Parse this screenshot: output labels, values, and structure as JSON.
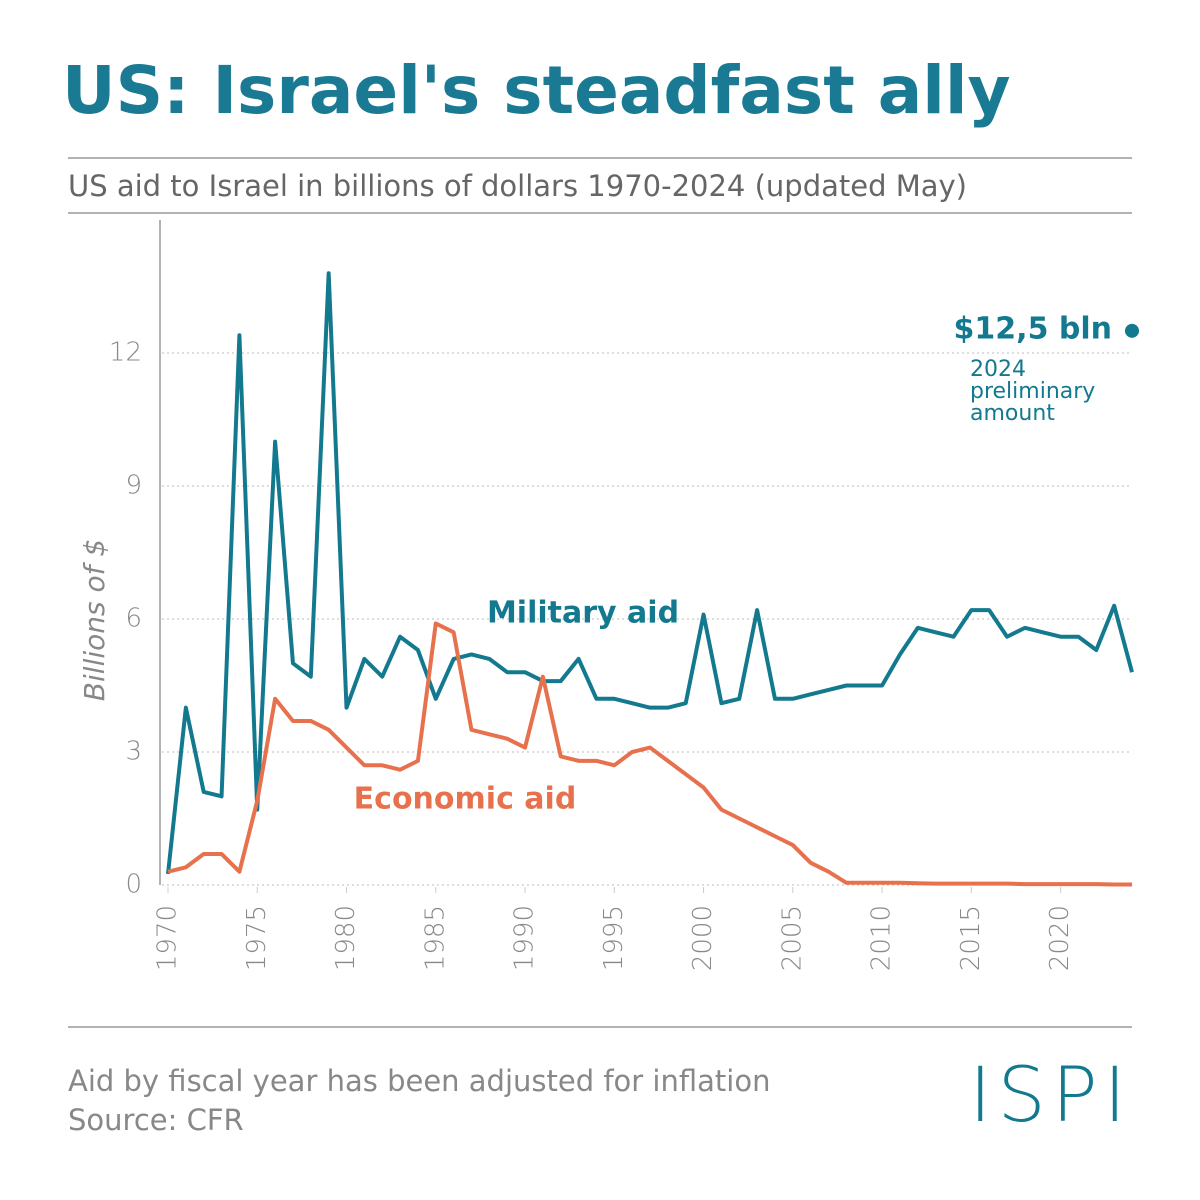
{
  "chart_data": {
    "type": "line",
    "title": "US: Israel's steadfast ally",
    "subtitle": "US aid to Israel in billions of dollars 1970-2024 (updated May)",
    "y_label": "Billions of $",
    "x": [
      1970,
      1971,
      1972,
      1973,
      1974,
      1975,
      1976,
      1977,
      1978,
      1979,
      1980,
      1981,
      1982,
      1983,
      1984,
      1985,
      1986,
      1987,
      1988,
      1989,
      1990,
      1991,
      1992,
      1993,
      1994,
      1995,
      1996,
      1997,
      1998,
      1999,
      2000,
      2001,
      2002,
      2003,
      2004,
      2005,
      2006,
      2007,
      2008,
      2009,
      2010,
      2011,
      2012,
      2013,
      2014,
      2015,
      2016,
      2017,
      2018,
      2019,
      2020,
      2021,
      2022,
      2023,
      2024
    ],
    "series": [
      {
        "name": "Military aid",
        "color": "#13798f",
        "values": [
          0.25,
          4.0,
          2.1,
          2.0,
          12.4,
          1.7,
          10.0,
          5.0,
          4.7,
          13.8,
          4.0,
          5.1,
          4.7,
          5.6,
          5.3,
          4.2,
          5.1,
          5.2,
          5.1,
          4.8,
          4.8,
          4.6,
          4.6,
          5.1,
          4.2,
          4.2,
          4.1,
          4.0,
          4.0,
          4.1,
          6.1,
          4.1,
          4.2,
          6.2,
          4.2,
          4.2,
          4.3,
          4.4,
          4.5,
          4.5,
          4.5,
          5.2,
          5.8,
          5.7,
          5.6,
          6.2,
          6.2,
          5.6,
          5.8,
          5.7,
          5.6,
          5.6,
          5.3,
          6.3,
          4.8
        ]
      },
      {
        "name": "Economic aid",
        "color": "#e8714d",
        "values": [
          0.3,
          0.4,
          0.7,
          0.7,
          0.3,
          1.9,
          4.2,
          3.7,
          3.7,
          3.5,
          3.1,
          2.7,
          2.7,
          2.6,
          2.8,
          5.9,
          5.7,
          3.5,
          3.4,
          3.3,
          3.1,
          4.7,
          2.9,
          2.8,
          2.8,
          2.7,
          3.0,
          3.1,
          2.8,
          2.5,
          2.2,
          1.7,
          1.5,
          1.3,
          1.1,
          0.9,
          0.5,
          0.3,
          0.05,
          0.05,
          0.05,
          0.05,
          0.04,
          0.03,
          0.03,
          0.03,
          0.03,
          0.03,
          0.02,
          0.02,
          0.02,
          0.02,
          0.02,
          0.01,
          0.01
        ]
      }
    ],
    "endpoint": {
      "x": 2024,
      "value": 12.5,
      "label": "$12,5 bln",
      "note": [
        "2024",
        "preliminary",
        "amount"
      ]
    },
    "xlim": [
      1970,
      2024
    ],
    "xticks": [
      1970,
      1975,
      1980,
      1985,
      1990,
      1995,
      2000,
      2005,
      2010,
      2015,
      2020
    ],
    "ylim": [
      0,
      15
    ],
    "yticks": [
      0,
      3,
      6,
      9,
      12
    ],
    "grid": true,
    "footnote": "Aid by fiscal year has been adjusted for inflation",
    "source": "Source: CFR",
    "logo": "ISPI"
  }
}
